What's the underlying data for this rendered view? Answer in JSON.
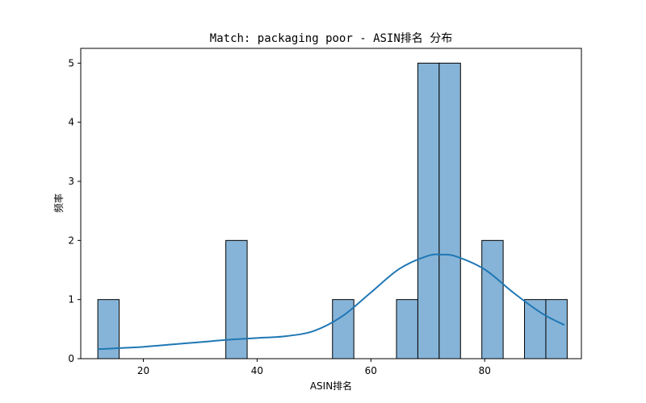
{
  "chart_data": {
    "type": "bar",
    "title": "Match: packaging poor - ASIN排名 分布",
    "xlabel": "ASIN排名",
    "ylabel": "频率",
    "xlim": [
      9,
      97
    ],
    "ylim": [
      0,
      5.25
    ],
    "xticks": [
      20,
      40,
      60,
      80
    ],
    "yticks": [
      0,
      1,
      2,
      3,
      4,
      5
    ],
    "grid": false,
    "legend": "none",
    "bar_color": "#86b4d8",
    "bar_edge_color": "#000000",
    "kde_color": "#1f77b4",
    "bins": [
      {
        "start": 12.0,
        "end": 15.75,
        "count": 1
      },
      {
        "start": 15.75,
        "end": 19.5,
        "count": 0
      },
      {
        "start": 19.5,
        "end": 23.25,
        "count": 0
      },
      {
        "start": 23.25,
        "end": 27.0,
        "count": 0
      },
      {
        "start": 27.0,
        "end": 30.75,
        "count": 0
      },
      {
        "start": 30.75,
        "end": 34.5,
        "count": 0
      },
      {
        "start": 34.5,
        "end": 38.25,
        "count": 2
      },
      {
        "start": 38.25,
        "end": 42.0,
        "count": 0
      },
      {
        "start": 42.0,
        "end": 45.75,
        "count": 0
      },
      {
        "start": 45.75,
        "end": 49.5,
        "count": 0
      },
      {
        "start": 49.5,
        "end": 53.25,
        "count": 0
      },
      {
        "start": 53.25,
        "end": 57.0,
        "count": 1
      },
      {
        "start": 57.0,
        "end": 60.75,
        "count": 0
      },
      {
        "start": 60.75,
        "end": 64.5,
        "count": 0
      },
      {
        "start": 64.5,
        "end": 68.25,
        "count": 1
      },
      {
        "start": 68.25,
        "end": 72.0,
        "count": 5
      },
      {
        "start": 72.0,
        "end": 75.75,
        "count": 5
      },
      {
        "start": 75.75,
        "end": 79.5,
        "count": 0
      },
      {
        "start": 79.5,
        "end": 83.25,
        "count": 2
      },
      {
        "start": 83.25,
        "end": 87.0,
        "count": 0
      },
      {
        "start": 87.0,
        "end": 90.75,
        "count": 1
      },
      {
        "start": 90.75,
        "end": 94.5,
        "count": 1
      }
    ],
    "kde": {
      "x": [
        12,
        16,
        20,
        25,
        30,
        35,
        40,
        45,
        50,
        55,
        60,
        65,
        70,
        72.5,
        75,
        80,
        85,
        90,
        94
      ],
      "y": [
        0.16,
        0.18,
        0.2,
        0.24,
        0.28,
        0.32,
        0.35,
        0.38,
        0.47,
        0.72,
        1.12,
        1.52,
        1.74,
        1.76,
        1.73,
        1.51,
        1.12,
        0.77,
        0.57
      ]
    }
  }
}
